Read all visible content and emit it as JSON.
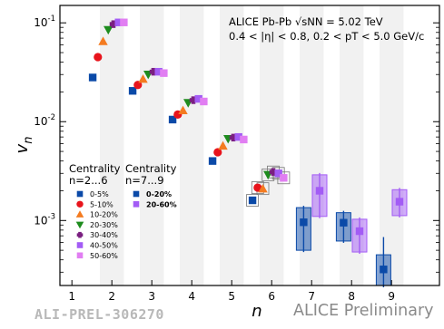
{
  "chart_data": {
    "type": "scatter",
    "y_scale": "log",
    "xlim": [
      0.7,
      10.2
    ],
    "ylim": [
      0.00022,
      0.15
    ],
    "x_ticks": [
      "1",
      "2",
      "3",
      "4",
      "5",
      "6",
      "7",
      "8",
      "9"
    ],
    "y_ticks": [
      "10^-3",
      "10^-2",
      "10^-1"
    ],
    "xlabel": "n",
    "ylabel": "v_n",
    "annotation_lines": [
      "ALICE Pb-Pb √sNN = 5.02 TeV",
      "0.4 < |η| < 0.8, 0.2 < pT < 5.0 GeV/c"
    ],
    "shaded_bands": true,
    "grid": false,
    "legend_left": {
      "title_line1": "Centrality",
      "title_line2": "n=2...6",
      "entries": [
        {
          "label": "0-5%",
          "color": "#0b4aa8",
          "marker": "square"
        },
        {
          "label": "5-10%",
          "color": "#e8141c",
          "marker": "circle"
        },
        {
          "label": "10-20%",
          "color": "#f47b20",
          "marker": "triangle-up"
        },
        {
          "label": "20-30%",
          "color": "#1e8c1e",
          "marker": "triangle-down"
        },
        {
          "label": "30-40%",
          "color": "#7a1f80",
          "marker": "cross"
        },
        {
          "label": "40-50%",
          "color": "#a35cf5",
          "marker": "square"
        },
        {
          "label": "50-60%",
          "color": "#e17ef2",
          "marker": "square"
        }
      ]
    },
    "legend_right": {
      "title_line1": "Centrality",
      "title_line2": "n=7...9",
      "entries": [
        {
          "label": "0-20%",
          "color": "#0b4aa8",
          "marker": "square"
        },
        {
          "label": "20-60%",
          "color": "#a35cf5",
          "marker": "square"
        }
      ]
    },
    "series": [
      {
        "name": "0-5%",
        "color": "#0b4aa8",
        "marker": "square",
        "points": [
          {
            "x": 2,
            "y": 0.028
          },
          {
            "x": 3,
            "y": 0.0205
          },
          {
            "x": 4,
            "y": 0.0105
          },
          {
            "x": 5,
            "y": 0.004
          },
          {
            "x": 6,
            "y": 0.0016
          }
        ]
      },
      {
        "name": "5-10%",
        "color": "#e8141c",
        "marker": "circle",
        "points": [
          {
            "x": 2,
            "y": 0.045
          },
          {
            "x": 3,
            "y": 0.0235
          },
          {
            "x": 4,
            "y": 0.0118
          },
          {
            "x": 5,
            "y": 0.0049
          },
          {
            "x": 6,
            "y": 0.00215
          }
        ]
      },
      {
        "name": "10-20%",
        "color": "#f47b20",
        "marker": "triangle-up",
        "points": [
          {
            "x": 2,
            "y": 0.065
          },
          {
            "x": 3,
            "y": 0.027
          },
          {
            "x": 4,
            "y": 0.013
          },
          {
            "x": 5,
            "y": 0.0057
          },
          {
            "x": 6,
            "y": 0.0021
          }
        ]
      },
      {
        "name": "20-30%",
        "color": "#1e8c1e",
        "marker": "triangle-down",
        "points": [
          {
            "x": 2,
            "y": 0.085
          },
          {
            "x": 3,
            "y": 0.03
          },
          {
            "x": 4,
            "y": 0.0155
          },
          {
            "x": 5,
            "y": 0.0067
          },
          {
            "x": 6,
            "y": 0.0029
          }
        ]
      },
      {
        "name": "30-40%",
        "color": "#7a1f80",
        "marker": "cross",
        "points": [
          {
            "x": 2,
            "y": 0.097
          },
          {
            "x": 3,
            "y": 0.032
          },
          {
            "x": 4,
            "y": 0.0165
          },
          {
            "x": 5,
            "y": 0.0069
          },
          {
            "x": 6,
            "y": 0.0031
          }
        ]
      },
      {
        "name": "40-50%",
        "color": "#a35cf5",
        "marker": "square",
        "points": [
          {
            "x": 2,
            "y": 0.101
          },
          {
            "x": 3,
            "y": 0.032
          },
          {
            "x": 4,
            "y": 0.017
          },
          {
            "x": 5,
            "y": 0.007
          },
          {
            "x": 6,
            "y": 0.003
          }
        ]
      },
      {
        "name": "50-60%",
        "color": "#e17ef2",
        "marker": "square",
        "points": [
          {
            "x": 2,
            "y": 0.101
          },
          {
            "x": 3,
            "y": 0.031
          },
          {
            "x": 4,
            "y": 0.016
          },
          {
            "x": 5,
            "y": 0.0066
          },
          {
            "x": 6,
            "y": 0.0027
          }
        ]
      },
      {
        "name": "0-20%",
        "color": "#0b4aa8",
        "marker": "square",
        "points": [
          {
            "x": 7,
            "y": 0.00096,
            "sys_lo": 0.0005,
            "sys_hi": 0.00135
          },
          {
            "x": 8,
            "y": 0.00095,
            "sys_lo": 0.00062,
            "sys_hi": 0.0012
          },
          {
            "x": 9,
            "y": 0.00032,
            "sys_lo": 0.00022,
            "sys_hi": 0.00045,
            "stat_hi": 0.00068
          }
        ]
      },
      {
        "name": "20-60%",
        "color": "#a35cf5",
        "marker": "square",
        "points": [
          {
            "x": 7,
            "y": 0.002,
            "sys_lo": 0.0011,
            "sys_hi": 0.0029
          },
          {
            "x": 8,
            "y": 0.00078,
            "sys_lo": 0.00048,
            "sys_hi": 0.00103
          },
          {
            "x": 9,
            "y": 0.00155,
            "sys_lo": 0.00112,
            "sys_hi": 0.00205
          }
        ]
      }
    ]
  },
  "footer": {
    "preliminary_id": "ALI-PREL-306270",
    "preliminary_label": "ALICE Preliminary"
  }
}
